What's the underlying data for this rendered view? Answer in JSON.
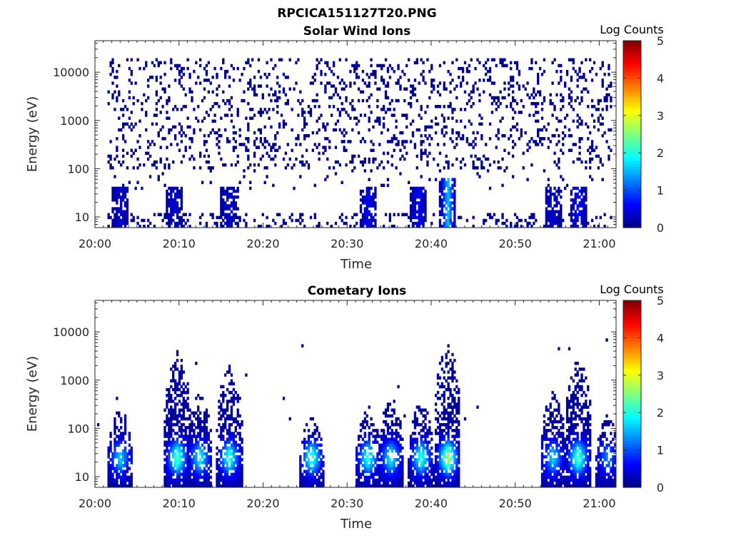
{
  "figure": {
    "suptitle": "RPCICA151127T20.PNG"
  },
  "chart_data": [
    {
      "type": "heatmap",
      "title": "Solar Wind Ions",
      "xlabel": "Time",
      "ylabel": "Energy (eV)",
      "x_ticks": [
        "20:00",
        "20:10",
        "20:20",
        "20:30",
        "20:40",
        "20:50",
        "21:00"
      ],
      "x_range_minutes": [
        0,
        62
      ],
      "y_ticks": [
        10,
        100,
        1000,
        10000
      ],
      "y_tick_labels": [
        "10",
        "100",
        "1000",
        "10000"
      ],
      "y_scale": "log",
      "y_range": [
        6,
        45000
      ],
      "colorbar": {
        "label": "Log Counts",
        "range": [
          0,
          5
        ],
        "ticks": [
          "0",
          "1",
          "2",
          "3",
          "4",
          "5"
        ],
        "colormap": "jet"
      },
      "features": {
        "sparse_counts_log": 0.1,
        "sparse_energy_range": [
          100,
          20000
        ],
        "data_start_minute": 1.5,
        "low_energy_bursts": [
          {
            "t": 3.0,
            "e_max": 40,
            "c": 0.3
          },
          {
            "t": 9.5,
            "e_max": 45,
            "c": 0.3
          },
          {
            "t": 16.0,
            "e_max": 40,
            "c": 0.3
          },
          {
            "t": 32.5,
            "e_max": 45,
            "c": 0.5
          },
          {
            "t": 38.5,
            "e_max": 40,
            "c": 0.5
          },
          {
            "t": 42.0,
            "e_max": 60,
            "c": 1.5
          },
          {
            "t": 54.5,
            "e_max": 40,
            "c": 0.3
          },
          {
            "t": 57.5,
            "e_max": 45,
            "c": 0.6
          }
        ]
      }
    },
    {
      "type": "heatmap",
      "title": "Cometary Ions",
      "xlabel": "Time",
      "ylabel": "Energy (eV)",
      "x_ticks": [
        "20:00",
        "20:10",
        "20:20",
        "20:30",
        "20:40",
        "20:50",
        "21:00"
      ],
      "x_range_minutes": [
        0,
        62
      ],
      "y_ticks": [
        10,
        100,
        1000,
        10000
      ],
      "y_tick_labels": [
        "10",
        "100",
        "1000",
        "10000"
      ],
      "y_scale": "log",
      "y_range": [
        6,
        45000
      ],
      "colorbar": {
        "label": "Log Counts",
        "range": [
          0,
          5
        ],
        "ticks": [
          "0",
          "1",
          "2",
          "3",
          "4",
          "5"
        ],
        "colormap": "jet"
      },
      "features": {
        "bursts": [
          {
            "t": 3.0,
            "e_max": 300,
            "peak_log_counts": 1.6
          },
          {
            "t": 9.8,
            "e_max": 4000,
            "peak_log_counts": 2.2
          },
          {
            "t": 12.5,
            "e_max": 600,
            "peak_log_counts": 1.8
          },
          {
            "t": 16.0,
            "e_max": 2000,
            "peak_log_counts": 2.0
          },
          {
            "t": 25.8,
            "e_max": 200,
            "peak_log_counts": 2.1
          },
          {
            "t": 32.5,
            "e_max": 300,
            "peak_log_counts": 2.0
          },
          {
            "t": 35.2,
            "e_max": 500,
            "peak_log_counts": 1.8
          },
          {
            "t": 38.8,
            "e_max": 400,
            "peak_log_counts": 2.0
          },
          {
            "t": 42.0,
            "e_max": 6000,
            "peak_log_counts": 2.6
          },
          {
            "t": 54.5,
            "e_max": 600,
            "peak_log_counts": 1.6
          },
          {
            "t": 57.5,
            "e_max": 3000,
            "peak_log_counts": 2.2
          },
          {
            "t": 61.0,
            "e_max": 200,
            "peak_log_counts": 1.2
          }
        ]
      }
    }
  ]
}
